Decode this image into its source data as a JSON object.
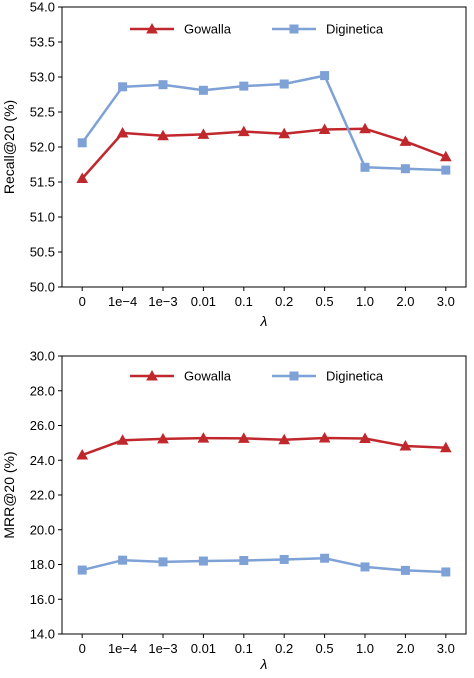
{
  "chart_data": [
    {
      "type": "line",
      "title": "",
      "xlabel": "λ",
      "ylabel": "Recall@20 (%)",
      "categories": [
        "0",
        "1e−4",
        "1e−3",
        "0.01",
        "0.1",
        "0.2",
        "0.5",
        "1.0",
        "2.0",
        "3.0"
      ],
      "ylim": [
        50.0,
        54.0
      ],
      "yticks": [
        "50.0",
        "50.5",
        "51.0",
        "51.5",
        "52.0",
        "52.5",
        "53.0",
        "53.5",
        "54.0"
      ],
      "grid": false,
      "legend": "top-center",
      "series": [
        {
          "name": "Gowalla",
          "color": "#c0282d",
          "marker": "triangle",
          "values": [
            51.55,
            52.2,
            52.16,
            52.18,
            52.22,
            52.19,
            52.25,
            52.26,
            52.08,
            51.86
          ]
        },
        {
          "name": "Diginetica",
          "color": "#7ea1d6",
          "marker": "square",
          "values": [
            52.06,
            52.86,
            52.89,
            52.81,
            52.87,
            52.9,
            53.02,
            51.71,
            51.69,
            51.67
          ]
        }
      ]
    },
    {
      "type": "line",
      "title": "",
      "xlabel": "λ",
      "ylabel": "MRR@20 (%)",
      "categories": [
        "0",
        "1e−4",
        "1e−3",
        "0.01",
        "0.1",
        "0.2",
        "0.5",
        "1.0",
        "2.0",
        "3.0"
      ],
      "ylim": [
        14.0,
        30.0
      ],
      "yticks": [
        "14.0",
        "16.0",
        "18.0",
        "20.0",
        "22.0",
        "24.0",
        "26.0",
        "28.0",
        "30.0"
      ],
      "grid": false,
      "legend": "top-center",
      "series": [
        {
          "name": "Gowalla",
          "color": "#c0282d",
          "marker": "triangle",
          "values": [
            24.3,
            25.15,
            25.23,
            25.27,
            25.26,
            25.18,
            25.28,
            25.25,
            24.82,
            24.72
          ]
        },
        {
          "name": "Diginetica",
          "color": "#7ea1d6",
          "marker": "square",
          "values": [
            17.68,
            18.25,
            18.15,
            18.2,
            18.23,
            18.29,
            18.36,
            17.86,
            17.66,
            17.57
          ]
        }
      ]
    }
  ]
}
